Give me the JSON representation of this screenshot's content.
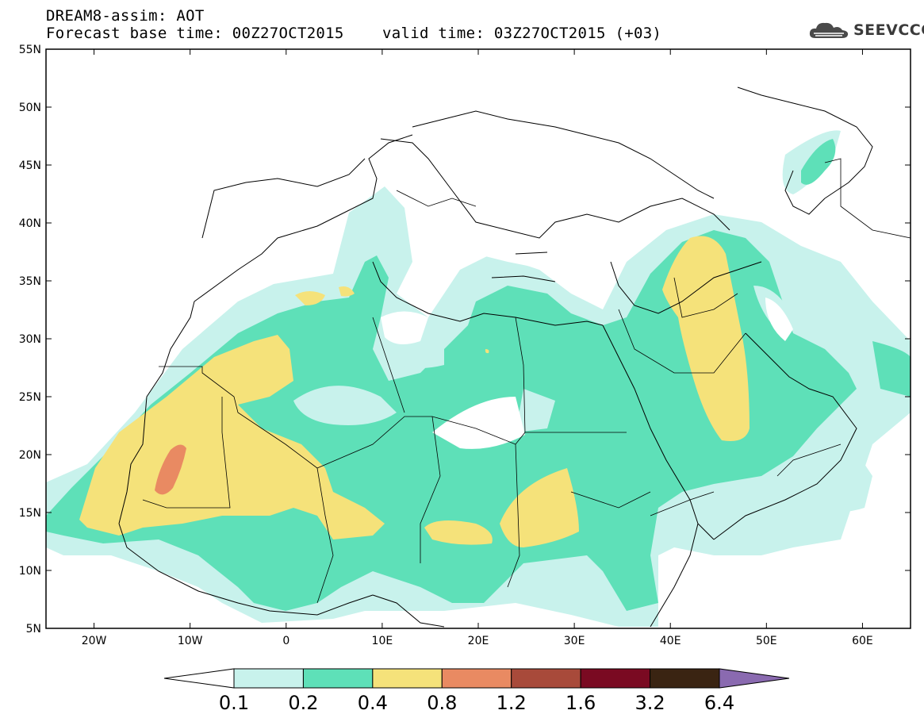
{
  "header": {
    "title": "DREAM8-assim: AOT",
    "base_time": "Forecast base time: 00Z27OCT2015",
    "valid_time": "valid time: 03Z27OCT2015 (+03)"
  },
  "logo": {
    "text": "SEEVCCC",
    "icon": "cloud-icon"
  },
  "map": {
    "variable": "AOT",
    "lon_range": [
      -25,
      65
    ],
    "lat_range": [
      5,
      55
    ],
    "lon_ticks": [
      "20W",
      "10W",
      "0",
      "10E",
      "20E",
      "30E",
      "40E",
      "50E",
      "60E"
    ],
    "lat_ticks": [
      "55N",
      "50N",
      "45N",
      "40N",
      "35N",
      "30N",
      "25N",
      "20N",
      "15N",
      "10N",
      "5N"
    ]
  },
  "colorbar": {
    "levels": [
      "0.1",
      "0.2",
      "0.4",
      "0.8",
      "1.2",
      "1.6",
      "3.2",
      "6.4"
    ],
    "colors": [
      "#c8f2ec",
      "#5ee0b8",
      "#f5e27a",
      "#e98a62",
      "#a84a3a",
      "#7a0a22",
      "#3a2412",
      "#8a6ab0"
    ],
    "under_color": "#ffffff"
  }
}
